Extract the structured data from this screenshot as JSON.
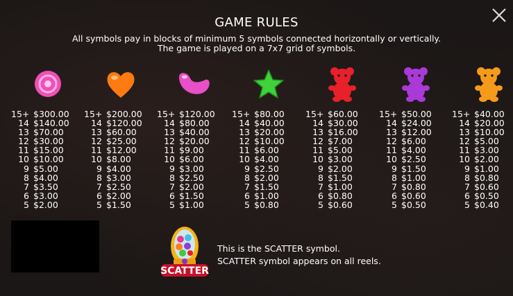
{
  "title": "GAME RULES",
  "rules": [
    "All symbols pay in blocks of minimum 5 symbols connected horizontally or vertically.",
    "The game is played on a 7x7 grid of symbols."
  ],
  "close_icon": "close-icon",
  "paytable": [
    {
      "symbol": "pink-lollipop-icon",
      "color": "#f04fb8",
      "payouts": [
        [
          "15+",
          "$300.00"
        ],
        [
          "14",
          "$140.00"
        ],
        [
          "13",
          "$70.00"
        ],
        [
          "12",
          "$30.00"
        ],
        [
          "11",
          "$15.00"
        ],
        [
          "10",
          "$10.00"
        ],
        [
          "9",
          "$5.00"
        ],
        [
          "8",
          "$4.00"
        ],
        [
          "7",
          "$3.50"
        ],
        [
          "6",
          "$3.00"
        ],
        [
          "5",
          "$2.00"
        ]
      ]
    },
    {
      "symbol": "orange-heart-icon",
      "color": "#ff7a10",
      "payouts": [
        [
          "15+",
          "$200.00"
        ],
        [
          "14",
          "$120.00"
        ],
        [
          "13",
          "$60.00"
        ],
        [
          "12",
          "$25.00"
        ],
        [
          "11",
          "$12.00"
        ],
        [
          "10",
          "$8.00"
        ],
        [
          "9",
          "$4.00"
        ],
        [
          "8",
          "$3.00"
        ],
        [
          "7",
          "$2.50"
        ],
        [
          "6",
          "$2.00"
        ],
        [
          "5",
          "$1.50"
        ]
      ]
    },
    {
      "symbol": "pink-jellybean-icon",
      "color": "#e84fc8",
      "payouts": [
        [
          "15+",
          "$120.00"
        ],
        [
          "14",
          "$80.00"
        ],
        [
          "13",
          "$40.00"
        ],
        [
          "12",
          "$20.00"
        ],
        [
          "11",
          "$9.00"
        ],
        [
          "10",
          "$6.00"
        ],
        [
          "9",
          "$3.00"
        ],
        [
          "8",
          "$2.50"
        ],
        [
          "7",
          "$2.00"
        ],
        [
          "6",
          "$1.50"
        ],
        [
          "5",
          "$1.00"
        ]
      ]
    },
    {
      "symbol": "green-star-icon",
      "color": "#3fd23a",
      "payouts": [
        [
          "15+",
          "$80.00"
        ],
        [
          "14",
          "$40.00"
        ],
        [
          "13",
          "$20.00"
        ],
        [
          "12",
          "$10.00"
        ],
        [
          "11",
          "$6.00"
        ],
        [
          "10",
          "$4.00"
        ],
        [
          "9",
          "$2.50"
        ],
        [
          "8",
          "$2.00"
        ],
        [
          "7",
          "$1.50"
        ],
        [
          "6",
          "$1.00"
        ],
        [
          "5",
          "$0.80"
        ]
      ]
    },
    {
      "symbol": "red-bear-icon",
      "color": "#e8202a",
      "payouts": [
        [
          "15+",
          "$60.00"
        ],
        [
          "14",
          "$30.00"
        ],
        [
          "13",
          "$16.00"
        ],
        [
          "12",
          "$7.00"
        ],
        [
          "11",
          "$5.00"
        ],
        [
          "10",
          "$3.00"
        ],
        [
          "9",
          "$2.00"
        ],
        [
          "8",
          "$1.50"
        ],
        [
          "7",
          "$1.00"
        ],
        [
          "6",
          "$0.80"
        ],
        [
          "5",
          "$0.60"
        ]
      ]
    },
    {
      "symbol": "purple-bear-icon",
      "color": "#a93ad8",
      "payouts": [
        [
          "15+",
          "$50.00"
        ],
        [
          "14",
          "$24.00"
        ],
        [
          "13",
          "$12.00"
        ],
        [
          "12",
          "$6.00"
        ],
        [
          "11",
          "$4.00"
        ],
        [
          "10",
          "$2.50"
        ],
        [
          "9",
          "$1.50"
        ],
        [
          "8",
          "$1.00"
        ],
        [
          "7",
          "$0.80"
        ],
        [
          "6",
          "$0.60"
        ],
        [
          "5",
          "$0.50"
        ]
      ]
    },
    {
      "symbol": "orange-bear-icon",
      "color": "#f59a1a",
      "payouts": [
        [
          "15+",
          "$40.00"
        ],
        [
          "14",
          "$20.00"
        ],
        [
          "13",
          "$10.00"
        ],
        [
          "12",
          "$5.00"
        ],
        [
          "11",
          "$3.00"
        ],
        [
          "10",
          "$2.00"
        ],
        [
          "9",
          "$1.00"
        ],
        [
          "8",
          "$0.80"
        ],
        [
          "7",
          "$0.60"
        ],
        [
          "6",
          "$0.50"
        ],
        [
          "5",
          "$0.40"
        ]
      ]
    }
  ],
  "scatter": {
    "symbol": "scatter-gumball-icon",
    "logo_text": "SCATTER",
    "lines": [
      "This is the SCATTER symbol.",
      "SCATTER symbol appears on all reels."
    ]
  }
}
